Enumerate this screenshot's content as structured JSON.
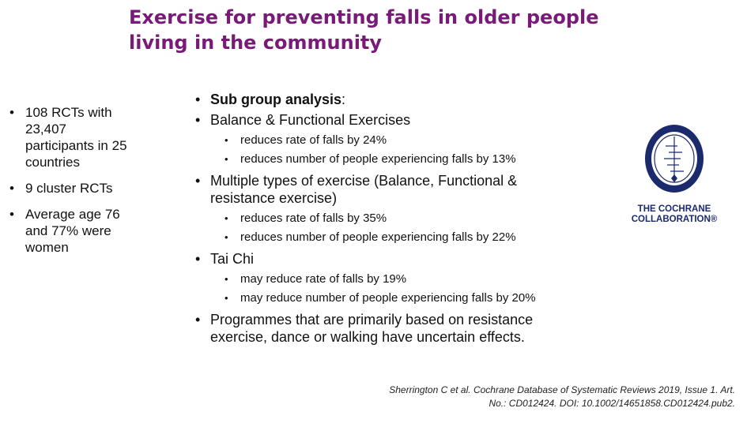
{
  "title": {
    "line1": "Exercise for preventing falls in older people",
    "line2": "living in the community"
  },
  "bullet_char": "•",
  "left_points": [
    {
      "lines": [
        "108 RCTs with",
        "23,407",
        "participants in 25",
        "countries"
      ]
    },
    {
      "lines": [
        "9 cluster RCTs"
      ]
    },
    {
      "lines": [
        "Average age 76",
        "and 77% were",
        "women"
      ]
    }
  ],
  "main_points": {
    "heading": {
      "bold": "Sub group analysis",
      "rest": ":"
    },
    "balance": {
      "label": "Balance & Functional Exercises",
      "subs": [
        "reduces rate of falls by 24%",
        "reduces number of people experiencing falls by 13%"
      ]
    },
    "multiple": {
      "line1": "Multiple types of exercise (Balance, Functional &",
      "line2": "resistance exercise)",
      "subs": [
        "reduces rate of falls by 35%",
        "reduces number of people experiencing falls by 22%"
      ]
    },
    "taichi": {
      "label": "Tai Chi",
      "subs": [
        "may reduce rate of falls by 19%",
        "may reduce number of people experiencing falls by 20%"
      ]
    },
    "programmes": {
      "line1": "Programmes that are primarily based on resistance",
      "line2": "exercise, dance or walking have uncertain effects."
    }
  },
  "logo": {
    "line1": "THE COCHRANE",
    "line2": "COLLABORATION®",
    "color": "#1a2a6c"
  },
  "citation": {
    "line1": "Sherrington  C et al. Cochrane Database of Systematic Reviews 2019, Issue 1. Art.",
    "line2": "No.: CD012424. DOI: 10.1002/14651858.CD012424.pub2."
  },
  "colors": {
    "title": "#7a1a78",
    "text": "#111111"
  }
}
